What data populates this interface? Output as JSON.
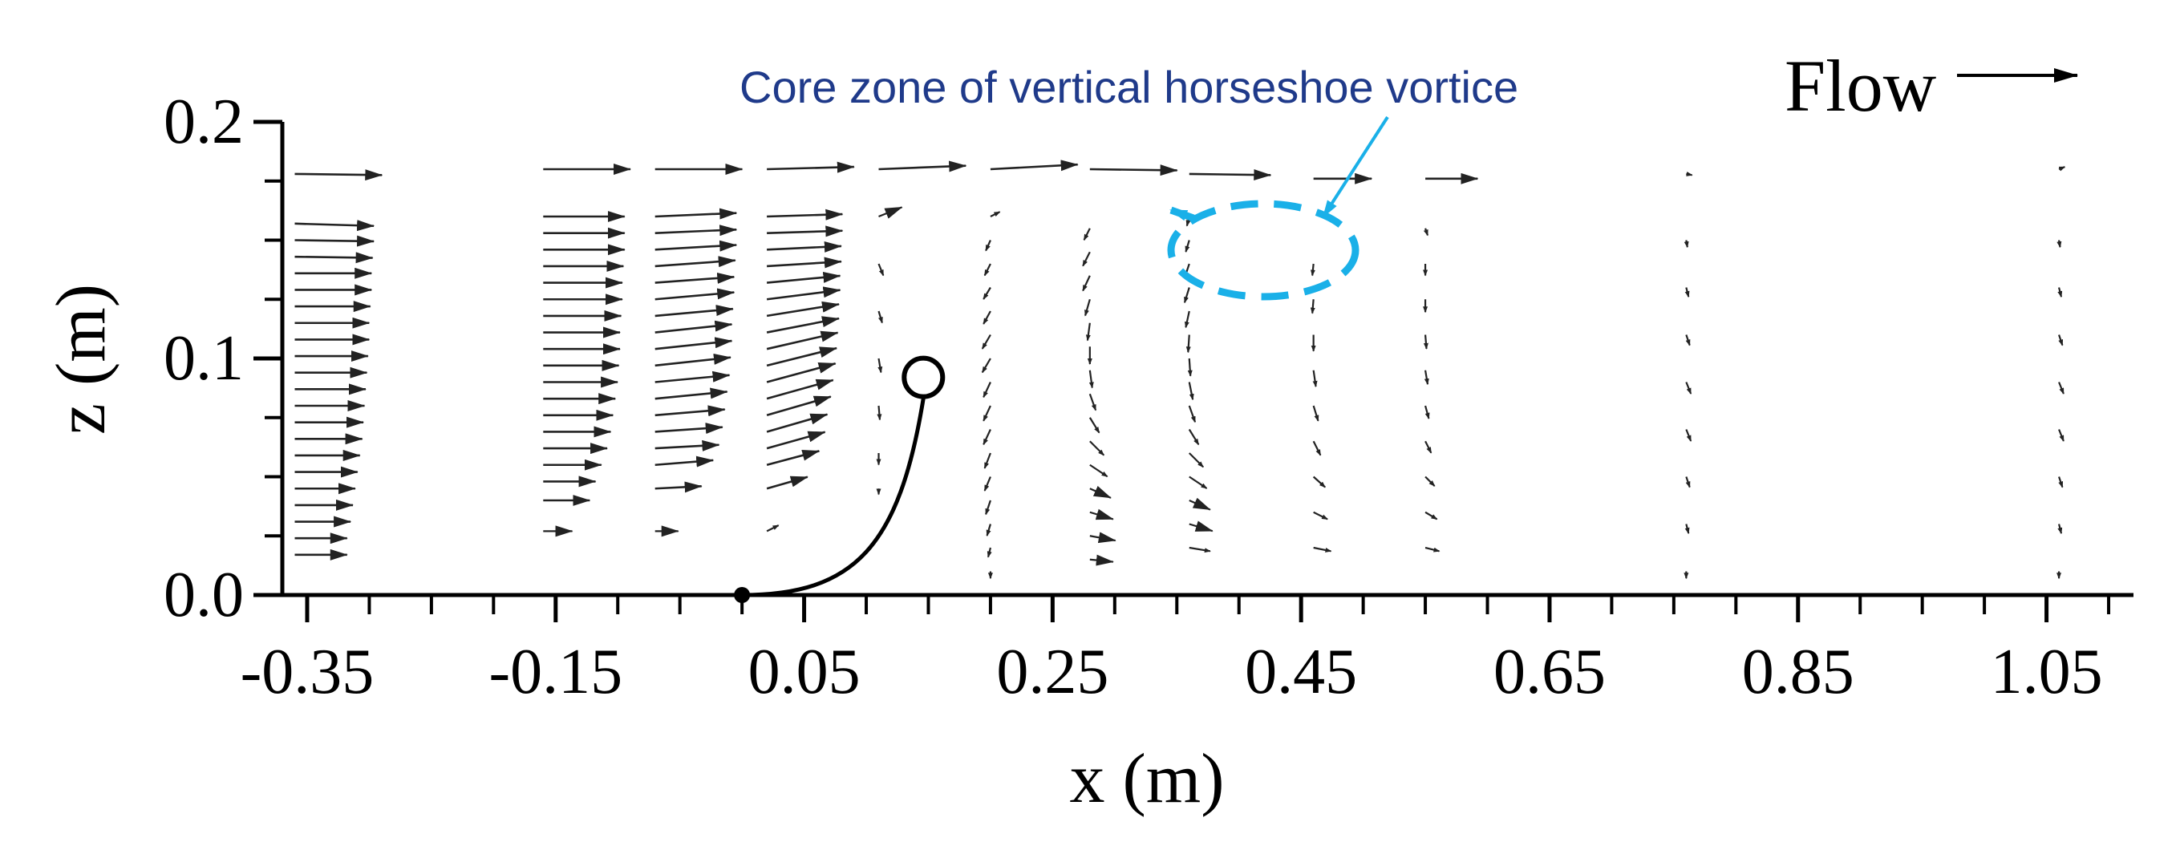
{
  "chart_data": {
    "type": "vector-field",
    "title": "",
    "xlabel": "x (m)",
    "ylabel": "z (m)",
    "xlim": [
      -0.37,
      1.12
    ],
    "ylim": [
      0,
      0.2
    ],
    "x_ticks": [
      -0.35,
      -0.15,
      0.05,
      0.25,
      0.45,
      0.65,
      0.85,
      1.05
    ],
    "x_tick_labels": [
      "-0.35",
      "-0.15",
      "0.05",
      "0.25",
      "0.45",
      "0.65",
      "0.85",
      "1.05"
    ],
    "y_ticks": [
      0,
      0.1,
      0.2
    ],
    "y_tick_labels": [
      "0.0",
      "0.1",
      "0.2"
    ],
    "flow_label": "Flow",
    "annotation": {
      "text": "Core zone of vertical horseshoe vortice",
      "color": "#1f3a8a",
      "pointer_color": "#1ab0e8"
    },
    "colors": {
      "vectors": "#222222",
      "vortex_marker": "#1ab0e8",
      "plant": "#000000"
    },
    "profiles": [
      {
        "x": -0.36,
        "z": [
          0.017,
          0.024,
          0.031,
          0.038,
          0.045,
          0.052,
          0.059,
          0.066,
          0.073,
          0.08,
          0.087,
          0.094,
          0.101,
          0.108,
          0.115,
          0.122,
          0.129,
          0.136,
          0.143,
          0.15,
          0.157,
          0.178
        ],
        "u": [
          0.045,
          0.045,
          0.048,
          0.05,
          0.052,
          0.054,
          0.056,
          0.058,
          0.059,
          0.06,
          0.061,
          0.062,
          0.063,
          0.064,
          0.064,
          0.065,
          0.066,
          0.066,
          0.067,
          0.068,
          0.068,
          0.075
        ],
        "w": [
          0,
          0,
          0,
          0,
          0,
          0,
          0,
          0,
          0,
          0,
          0,
          0,
          0,
          0,
          0,
          0,
          0,
          0,
          -0.001,
          -0.001,
          -0.002,
          -0.001
        ]
      },
      {
        "x": -0.16,
        "z": [
          0.027,
          0.04,
          0.048,
          0.055,
          0.062,
          0.069,
          0.076,
          0.083,
          0.09,
          0.097,
          0.104,
          0.111,
          0.118,
          0.125,
          0.132,
          0.139,
          0.146,
          0.153,
          0.16,
          0.18
        ],
        "u": [
          0.025,
          0.04,
          0.045,
          0.05,
          0.055,
          0.058,
          0.06,
          0.062,
          0.064,
          0.065,
          0.066,
          0.066,
          0.067,
          0.068,
          0.068,
          0.069,
          0.07,
          0.07,
          0.07,
          0.075
        ],
        "w": [
          0,
          0,
          0,
          0,
          0,
          0,
          0,
          0,
          0,
          0,
          0,
          0,
          0,
          0,
          0,
          0,
          0,
          0,
          0,
          0
        ]
      },
      {
        "x": -0.07,
        "z": [
          0.027,
          0.045,
          0.055,
          0.062,
          0.069,
          0.076,
          0.083,
          0.09,
          0.097,
          0.104,
          0.111,
          0.118,
          0.125,
          0.132,
          0.139,
          0.146,
          0.153,
          0.16,
          0.18
        ],
        "u": [
          0.02,
          0.04,
          0.05,
          0.055,
          0.058,
          0.06,
          0.062,
          0.064,
          0.065,
          0.066,
          0.066,
          0.067,
          0.068,
          0.068,
          0.069,
          0.07,
          0.07,
          0.07,
          0.075
        ],
        "w": [
          0,
          0.002,
          0.004,
          0.003,
          0.004,
          0.005,
          0.006,
          0.006,
          0.007,
          0.007,
          0.007,
          0.006,
          0.006,
          0.005,
          0.005,
          0.004,
          0.003,
          0.003,
          0
        ]
      },
      {
        "x": 0.02,
        "z": [
          0.027,
          0.045,
          0.055,
          0.062,
          0.069,
          0.076,
          0.083,
          0.09,
          0.097,
          0.104,
          0.111,
          0.118,
          0.125,
          0.132,
          0.139,
          0.146,
          0.153,
          0.16,
          0.18
        ],
        "u": [
          0.01,
          0.035,
          0.045,
          0.05,
          0.052,
          0.055,
          0.057,
          0.059,
          0.06,
          0.061,
          0.062,
          0.062,
          0.063,
          0.063,
          0.064,
          0.064,
          0.065,
          0.065,
          0.075
        ],
        "w": [
          0.005,
          0.01,
          0.012,
          0.014,
          0.015,
          0.016,
          0.016,
          0.016,
          0.015,
          0.014,
          0.012,
          0.01,
          0.008,
          0.006,
          0.004,
          0.003,
          0.002,
          0.002,
          0.002
        ]
      },
      {
        "x": 0.11,
        "z": [
          0.045,
          0.06,
          0.08,
          0.1,
          0.12,
          0.14,
          0.16,
          0.18
        ],
        "u": [
          0,
          0,
          0.001,
          0.002,
          0.003,
          0.004,
          0.02,
          0.075
        ],
        "w": [
          -0.005,
          -0.01,
          -0.012,
          -0.012,
          -0.01,
          -0.01,
          0.008,
          0.003
        ]
      },
      {
        "x": 0.2,
        "z": [
          0.01,
          0.02,
          0.03,
          0.04,
          0.05,
          0.06,
          0.07,
          0.08,
          0.09,
          0.1,
          0.11,
          0.12,
          0.13,
          0.14,
          0.15,
          0.16,
          0.18
        ],
        "u": [
          0,
          -0.002,
          -0.003,
          -0.004,
          -0.005,
          -0.005,
          -0.006,
          -0.006,
          -0.006,
          -0.007,
          -0.007,
          -0.006,
          -0.006,
          -0.005,
          -0.004,
          0.008,
          0.075
        ],
        "w": [
          -0.006,
          -0.008,
          -0.01,
          -0.012,
          -0.012,
          -0.013,
          -0.013,
          -0.013,
          -0.013,
          -0.012,
          -0.012,
          -0.011,
          -0.01,
          -0.01,
          -0.009,
          0.004,
          0.004
        ]
      },
      {
        "x": 0.28,
        "z": [
          0.015,
          0.025,
          0.035,
          0.045,
          0.055,
          0.065,
          0.075,
          0.085,
          0.095,
          0.105,
          0.115,
          0.125,
          0.135,
          0.145,
          0.155,
          0.18
        ],
        "u": [
          0.02,
          0.022,
          0.02,
          0.018,
          0.015,
          0.012,
          0.008,
          0.005,
          0.002,
          0,
          -0.002,
          -0.004,
          -0.006,
          -0.006,
          -0.005,
          0.075
        ],
        "w": [
          -0.002,
          -0.004,
          -0.006,
          -0.008,
          -0.01,
          -0.012,
          -0.013,
          -0.014,
          -0.015,
          -0.015,
          -0.015,
          -0.014,
          -0.013,
          -0.012,
          -0.01,
          -0.001
        ]
      },
      {
        "x": 0.36,
        "z": [
          0.02,
          0.03,
          0.04,
          0.05,
          0.06,
          0.07,
          0.08,
          0.09,
          0.1,
          0.11,
          0.12,
          0.13,
          0.14,
          0.15,
          0.16,
          0.178
        ],
        "u": [
          0.018,
          0.02,
          0.018,
          0.015,
          0.012,
          0.008,
          0.005,
          0.003,
          0.001,
          -0.001,
          -0.003,
          -0.004,
          -0.004,
          -0.003,
          -0.002,
          0.07
        ],
        "w": [
          -0.003,
          -0.006,
          -0.008,
          -0.01,
          -0.012,
          -0.013,
          -0.014,
          -0.015,
          -0.015,
          -0.015,
          -0.014,
          -0.013,
          -0.012,
          -0.01,
          -0.008,
          -0.001
        ]
      },
      {
        "x": 0.46,
        "z": [
          0.02,
          0.035,
          0.05,
          0.065,
          0.08,
          0.095,
          0.11,
          0.125,
          0.14,
          0.176
        ],
        "u": [
          0.015,
          0.012,
          0.01,
          0.006,
          0.004,
          0.002,
          0,
          -0.001,
          -0.001,
          0.05
        ],
        "w": [
          -0.003,
          -0.006,
          -0.009,
          -0.012,
          -0.013,
          -0.014,
          -0.014,
          -0.012,
          -0.01,
          0
        ]
      },
      {
        "x": 0.55,
        "z": [
          0.02,
          0.035,
          0.05,
          0.065,
          0.08,
          0.095,
          0.11,
          0.125,
          0.14,
          0.155,
          0.176
        ],
        "u": [
          0.012,
          0.01,
          0.008,
          0.005,
          0.003,
          0.002,
          0.001,
          0,
          0,
          0.002,
          0.045
        ],
        "w": [
          -0.003,
          -0.006,
          -0.008,
          -0.01,
          -0.011,
          -0.012,
          -0.012,
          -0.011,
          -0.01,
          -0.006,
          0
        ]
      },
      {
        "x": 0.76,
        "z": [
          0.01,
          0.03,
          0.05,
          0.07,
          0.09,
          0.11,
          0.13,
          0.15,
          0.178
        ],
        "u": [
          0,
          0.002,
          0.003,
          0.004,
          0.004,
          0.003,
          0.002,
          0.001,
          0.005
        ],
        "w": [
          -0.006,
          -0.008,
          -0.009,
          -0.01,
          -0.01,
          -0.009,
          -0.008,
          -0.006,
          -0.001
        ]
      },
      {
        "x": 1.06,
        "z": [
          0.01,
          0.03,
          0.05,
          0.07,
          0.09,
          0.11,
          0.13,
          0.15,
          0.18
        ],
        "u": [
          0,
          0.002,
          0.003,
          0.004,
          0.004,
          0.003,
          0.002,
          0.001,
          0.005
        ],
        "w": [
          -0.006,
          -0.008,
          -0.009,
          -0.01,
          -0.01,
          -0.009,
          -0.008,
          -0.006,
          0.002
        ]
      }
    ],
    "plant": {
      "base": [
        0.0,
        0.0
      ],
      "tip": [
        0.146,
        0.092
      ]
    }
  }
}
